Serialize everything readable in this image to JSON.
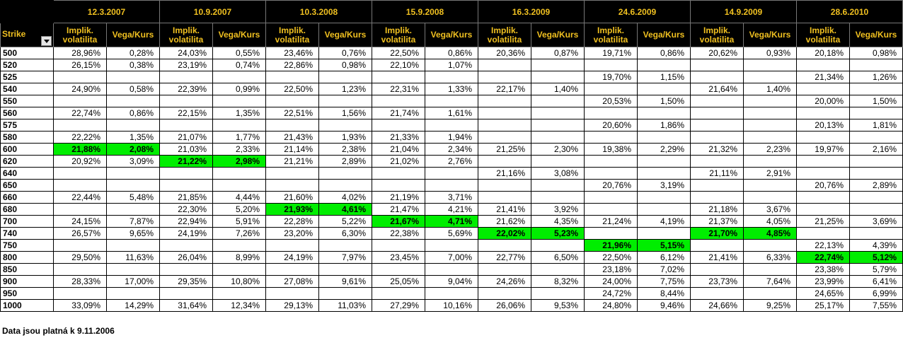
{
  "dates": [
    "12.3.2007",
    "10.9.2007",
    "10.3.2008",
    "15.9.2008",
    "16.3.2009",
    "24.6.2009",
    "14.9.2009",
    "28.6.2010"
  ],
  "header": {
    "strike": "Strike",
    "impl": "Implik. volatilita",
    "vega": "Vega/Kurs"
  },
  "rows": [
    {
      "strike": "500",
      "cells": [
        [
          "28,96%",
          "0,28%"
        ],
        [
          "24,03%",
          "0,55%"
        ],
        [
          "23,46%",
          "0,76%"
        ],
        [
          "22,50%",
          "0,86%"
        ],
        [
          "20,36%",
          "0,87%"
        ],
        [
          "19,71%",
          "0,86%"
        ],
        [
          "20,62%",
          "0,93%"
        ],
        [
          "20,18%",
          "0,98%"
        ]
      ]
    },
    {
      "strike": "520",
      "cells": [
        [
          "26,15%",
          "0,38%"
        ],
        [
          "23,19%",
          "0,74%"
        ],
        [
          "22,86%",
          "0,98%"
        ],
        [
          "22,10%",
          "1,07%"
        ],
        [
          "",
          ""
        ],
        [
          "",
          ""
        ],
        [
          "",
          ""
        ],
        [
          "",
          ""
        ]
      ]
    },
    {
      "strike": "525",
      "cells": [
        [
          "",
          ""
        ],
        [
          "",
          ""
        ],
        [
          "",
          ""
        ],
        [
          "",
          ""
        ],
        [
          "",
          ""
        ],
        [
          "19,70%",
          "1,15%"
        ],
        [
          "",
          ""
        ],
        [
          "21,34%",
          "1,26%"
        ]
      ]
    },
    {
      "strike": "540",
      "cells": [
        [
          "24,90%",
          "0,58%"
        ],
        [
          "22,39%",
          "0,99%"
        ],
        [
          "22,50%",
          "1,23%"
        ],
        [
          "22,31%",
          "1,33%"
        ],
        [
          "22,17%",
          "1,40%"
        ],
        [
          "",
          ""
        ],
        [
          "21,64%",
          "1,40%"
        ],
        [
          "",
          ""
        ]
      ]
    },
    {
      "strike": "550",
      "cells": [
        [
          "",
          ""
        ],
        [
          "",
          ""
        ],
        [
          "",
          ""
        ],
        [
          "",
          ""
        ],
        [
          "",
          ""
        ],
        [
          "20,53%",
          "1,50%"
        ],
        [
          "",
          ""
        ],
        [
          "20,00%",
          "1,50%"
        ]
      ]
    },
    {
      "strike": "560",
      "cells": [
        [
          "22,74%",
          "0,86%"
        ],
        [
          "22,15%",
          "1,35%"
        ],
        [
          "22,51%",
          "1,56%"
        ],
        [
          "21,74%",
          "1,61%"
        ],
        [
          "",
          ""
        ],
        [
          "",
          ""
        ],
        [
          "",
          ""
        ],
        [
          "",
          ""
        ]
      ]
    },
    {
      "strike": "575",
      "cells": [
        [
          "",
          ""
        ],
        [
          "",
          ""
        ],
        [
          "",
          ""
        ],
        [
          "",
          ""
        ],
        [
          "",
          ""
        ],
        [
          "20,60%",
          "1,86%"
        ],
        [
          "",
          ""
        ],
        [
          "20,13%",
          "1,81%"
        ]
      ]
    },
    {
      "strike": "580",
      "cells": [
        [
          "22,22%",
          "1,35%"
        ],
        [
          "21,07%",
          "1,77%"
        ],
        [
          "21,43%",
          "1,93%"
        ],
        [
          "21,33%",
          "1,94%"
        ],
        [
          "",
          ""
        ],
        [
          "",
          ""
        ],
        [
          "",
          ""
        ],
        [
          "",
          ""
        ]
      ]
    },
    {
      "strike": "600",
      "cells": [
        [
          "21,88%",
          "2,08%"
        ],
        [
          "21,03%",
          "2,33%"
        ],
        [
          "21,14%",
          "2,38%"
        ],
        [
          "21,04%",
          "2,34%"
        ],
        [
          "21,25%",
          "2,30%"
        ],
        [
          "19,38%",
          "2,29%"
        ],
        [
          "21,32%",
          "2,23%"
        ],
        [
          "19,97%",
          "2,16%"
        ]
      ],
      "hl": [
        0
      ]
    },
    {
      "strike": "620",
      "cells": [
        [
          "20,92%",
          "3,09%"
        ],
        [
          "21,22%",
          "2,98%"
        ],
        [
          "21,21%",
          "2,89%"
        ],
        [
          "21,02%",
          "2,76%"
        ],
        [
          "",
          ""
        ],
        [
          "",
          ""
        ],
        [
          "",
          ""
        ],
        [
          "",
          ""
        ]
      ],
      "hl": [
        1
      ]
    },
    {
      "strike": "640",
      "cells": [
        [
          "",
          ""
        ],
        [
          "",
          ""
        ],
        [
          "",
          ""
        ],
        [
          "",
          ""
        ],
        [
          "21,16%",
          "3,08%"
        ],
        [
          "",
          ""
        ],
        [
          "21,11%",
          "2,91%"
        ],
        [
          "",
          ""
        ]
      ]
    },
    {
      "strike": "650",
      "cells": [
        [
          "",
          ""
        ],
        [
          "",
          ""
        ],
        [
          "",
          ""
        ],
        [
          "",
          ""
        ],
        [
          "",
          ""
        ],
        [
          "20,76%",
          "3,19%"
        ],
        [
          "",
          ""
        ],
        [
          "20,76%",
          "2,89%"
        ]
      ]
    },
    {
      "strike": "660",
      "cells": [
        [
          "22,44%",
          "5,48%"
        ],
        [
          "21,85%",
          "4,44%"
        ],
        [
          "21,60%",
          "4,02%"
        ],
        [
          "21,19%",
          "3,71%"
        ],
        [
          "",
          ""
        ],
        [
          "",
          ""
        ],
        [
          "",
          ""
        ],
        [
          "",
          ""
        ]
      ]
    },
    {
      "strike": "680",
      "cells": [
        [
          "",
          ""
        ],
        [
          "22,30%",
          "5,20%"
        ],
        [
          "21,93%",
          "4,61%"
        ],
        [
          "21,47%",
          "4,21%"
        ],
        [
          "21,41%",
          "3,92%"
        ],
        [
          "",
          ""
        ],
        [
          "21,18%",
          "3,67%"
        ],
        [
          "",
          ""
        ]
      ],
      "hl": [
        2
      ]
    },
    {
      "strike": "700",
      "cells": [
        [
          "24,15%",
          "7,87%"
        ],
        [
          "22,94%",
          "5,91%"
        ],
        [
          "22,28%",
          "5,22%"
        ],
        [
          "21,67%",
          "4,71%"
        ],
        [
          "21,62%",
          "4,35%"
        ],
        [
          "21,24%",
          "4,19%"
        ],
        [
          "21,37%",
          "4,05%"
        ],
        [
          "21,25%",
          "3,69%"
        ]
      ],
      "hl": [
        3
      ]
    },
    {
      "strike": "740",
      "cells": [
        [
          "26,57%",
          "9,65%"
        ],
        [
          "24,19%",
          "7,26%"
        ],
        [
          "23,20%",
          "6,30%"
        ],
        [
          "22,38%",
          "5,69%"
        ],
        [
          "22,02%",
          "5,23%"
        ],
        [
          "",
          ""
        ],
        [
          "21,70%",
          "4,85%"
        ],
        [
          "",
          ""
        ]
      ],
      "hl": [
        4,
        6
      ]
    },
    {
      "strike": "750",
      "cells": [
        [
          "",
          ""
        ],
        [
          "",
          ""
        ],
        [
          "",
          ""
        ],
        [
          "",
          ""
        ],
        [
          "",
          ""
        ],
        [
          "21,96%",
          "5,15%"
        ],
        [
          "",
          ""
        ],
        [
          "22,13%",
          "4,39%"
        ]
      ],
      "hl": [
        5
      ]
    },
    {
      "strike": "800",
      "cells": [
        [
          "29,50%",
          "11,63%"
        ],
        [
          "26,04%",
          "8,99%"
        ],
        [
          "24,19%",
          "7,97%"
        ],
        [
          "23,45%",
          "7,00%"
        ],
        [
          "22,77%",
          "6,50%"
        ],
        [
          "22,50%",
          "6,12%"
        ],
        [
          "21,41%",
          "6,33%"
        ],
        [
          "22,74%",
          "5,12%"
        ]
      ],
      "hl": [
        7
      ]
    },
    {
      "strike": "850",
      "cells": [
        [
          "",
          ""
        ],
        [
          "",
          ""
        ],
        [
          "",
          ""
        ],
        [
          "",
          ""
        ],
        [
          "",
          ""
        ],
        [
          "23,18%",
          "7,02%"
        ],
        [
          "",
          ""
        ],
        [
          "23,38%",
          "5,79%"
        ]
      ]
    },
    {
      "strike": "900",
      "cells": [
        [
          "28,33%",
          "17,00%"
        ],
        [
          "29,35%",
          "10,80%"
        ],
        [
          "27,08%",
          "9,61%"
        ],
        [
          "25,05%",
          "9,04%"
        ],
        [
          "24,26%",
          "8,32%"
        ],
        [
          "24,00%",
          "7,75%"
        ],
        [
          "23,73%",
          "7,64%"
        ],
        [
          "23,99%",
          "6,41%"
        ]
      ]
    },
    {
      "strike": "950",
      "cells": [
        [
          "",
          ""
        ],
        [
          "",
          ""
        ],
        [
          "",
          ""
        ],
        [
          "",
          ""
        ],
        [
          "",
          ""
        ],
        [
          "24,72%",
          "8,44%"
        ],
        [
          "",
          ""
        ],
        [
          "24,65%",
          "6,99%"
        ]
      ]
    },
    {
      "strike": "1000",
      "cells": [
        [
          "33,09%",
          "14,29%"
        ],
        [
          "31,64%",
          "12,34%"
        ],
        [
          "29,13%",
          "11,03%"
        ],
        [
          "27,29%",
          "10,16%"
        ],
        [
          "26,06%",
          "9,53%"
        ],
        [
          "24,80%",
          "9,46%"
        ],
        [
          "24,66%",
          "9,25%"
        ],
        [
          "25,17%",
          "7,55%"
        ]
      ]
    }
  ],
  "footnote": "Data jsou platná k 9.11.2006",
  "colors": {
    "header_bg": "#000000",
    "header_text": "#f0c020",
    "highlight": "#00ee00"
  }
}
